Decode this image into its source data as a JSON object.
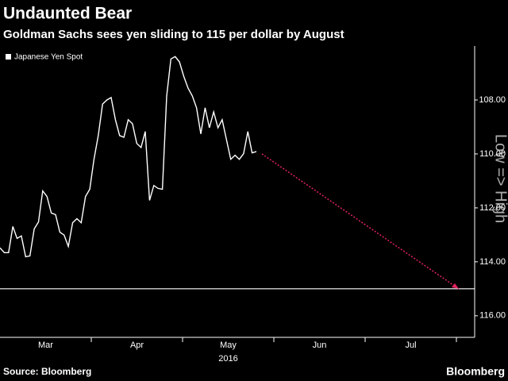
{
  "chart_data": {
    "type": "line",
    "title": "Undaunted Bear",
    "subtitle": "Goldman Sachs sees yen sliding to 115 per dollar by August",
    "months": [
      "Mar",
      "Apr",
      "May",
      "Jun",
      "Jul"
    ],
    "year_label": "2016",
    "series": [
      {
        "name": "Japanese Yen Spot",
        "color": "#ffffff",
        "values": [
          113.48,
          113.66,
          113.66,
          112.69,
          113.13,
          113.04,
          113.81,
          113.78,
          112.78,
          112.52,
          111.37,
          111.58,
          112.19,
          112.25,
          112.9,
          113.01,
          113.43,
          112.55,
          112.4,
          112.55,
          111.58,
          111.31,
          110.2,
          109.32,
          108.15,
          108.0,
          107.91,
          108.73,
          109.32,
          109.38,
          108.73,
          108.88,
          109.61,
          109.76,
          109.17,
          111.72,
          111.17,
          111.28,
          111.31,
          107.85,
          106.48,
          106.39,
          106.59,
          107.12,
          107.56,
          107.85,
          108.29,
          109.26,
          108.29,
          109.03,
          108.44,
          109.03,
          108.73,
          109.47,
          110.2,
          110.05,
          110.2,
          109.99,
          109.17,
          109.96,
          109.91
        ]
      }
    ],
    "forecast": {
      "color": "#e0245e",
      "values": [
        110.0,
        115.0
      ]
    },
    "reference_line": 115,
    "axis_note": "Low => High",
    "ylim": [
      106,
      116.8
    ],
    "inverted": true,
    "yticks": [
      {
        "value": 108,
        "label": "108.00"
      },
      {
        "value": 110,
        "label": "110.00"
      },
      {
        "value": 112,
        "label": "112.00"
      },
      {
        "value": 114,
        "label": "114.00"
      },
      {
        "value": 116,
        "label": "116.00"
      }
    ],
    "source": "Source: Bloomberg",
    "brand": "Bloomberg"
  }
}
